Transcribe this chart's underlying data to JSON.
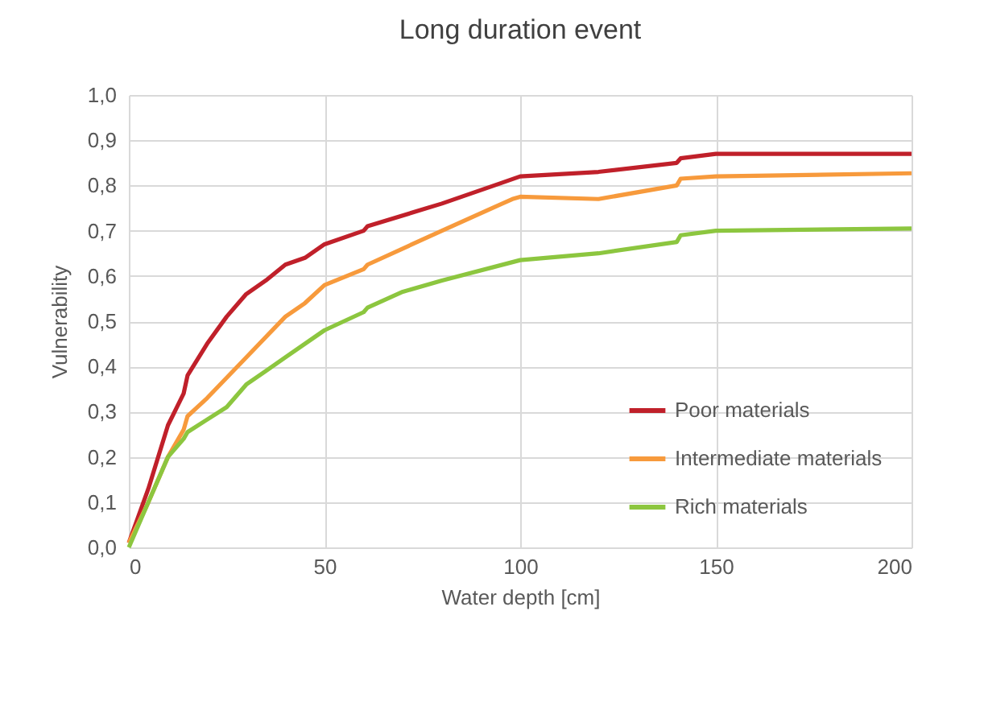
{
  "chart_data": {
    "type": "line",
    "title": "Long duration event",
    "xlabel": "Water depth [cm]",
    "ylabel": "Vulnerability",
    "xlim": [
      0,
      200
    ],
    "xticks": [
      0,
      50,
      100,
      150,
      200
    ],
    "ylim": [
      0,
      1
    ],
    "yticks": [
      {
        "value": 0,
        "label": "0,0"
      },
      {
        "value": 0.1,
        "label": "0,1"
      },
      {
        "value": 0.2,
        "label": "0,2"
      },
      {
        "value": 0.3,
        "label": "0,3"
      },
      {
        "value": 0.4,
        "label": "0,4"
      },
      {
        "value": 0.5,
        "label": "0,5"
      },
      {
        "value": 0.6,
        "label": "0,6"
      },
      {
        "value": 0.7,
        "label": "0,7"
      },
      {
        "value": 0.8,
        "label": "0,8"
      },
      {
        "value": 0.9,
        "label": "0,9"
      },
      {
        "value": 1,
        "label": "1,0"
      }
    ],
    "grid": true,
    "legend": "bottom right",
    "marker": "none",
    "line_style": "solid",
    "series": [
      {
        "name": "Poor materials",
        "color": "#c0202a",
        "x": [
          0,
          5,
          10,
          14,
          15,
          20,
          25,
          30,
          35,
          40,
          45,
          50,
          60,
          61,
          80,
          95,
          100,
          120,
          140,
          141,
          150,
          200
        ],
        "values": [
          0.01,
          0.13,
          0.27,
          0.34,
          0.38,
          0.45,
          0.51,
          0.56,
          0.59,
          0.625,
          0.64,
          0.67,
          0.7,
          0.71,
          0.76,
          0.805,
          0.82,
          0.83,
          0.85,
          0.86,
          0.87,
          0.87
        ]
      },
      {
        "name": "Intermediate materials",
        "color": "#f79a3c",
        "x": [
          0,
          5,
          10,
          14,
          15,
          20,
          30,
          40,
          45,
          50,
          60,
          61,
          80,
          98,
          100,
          120,
          140,
          141,
          150,
          200
        ],
        "values": [
          0.01,
          0.1,
          0.2,
          0.26,
          0.29,
          0.33,
          0.42,
          0.51,
          0.54,
          0.58,
          0.615,
          0.625,
          0.7,
          0.77,
          0.775,
          0.77,
          0.8,
          0.815,
          0.82,
          0.827
        ]
      },
      {
        "name": "Rich materials",
        "color": "#8cc63f",
        "x": [
          0,
          5,
          10,
          14,
          15,
          25,
          30,
          35,
          40,
          50,
          60,
          61,
          70,
          80,
          100,
          120,
          140,
          141,
          150,
          200
        ],
        "values": [
          0,
          0.1,
          0.2,
          0.24,
          0.255,
          0.31,
          0.36,
          0.39,
          0.42,
          0.48,
          0.52,
          0.53,
          0.565,
          0.59,
          0.635,
          0.65,
          0.675,
          0.69,
          0.7,
          0.705
        ]
      }
    ]
  }
}
